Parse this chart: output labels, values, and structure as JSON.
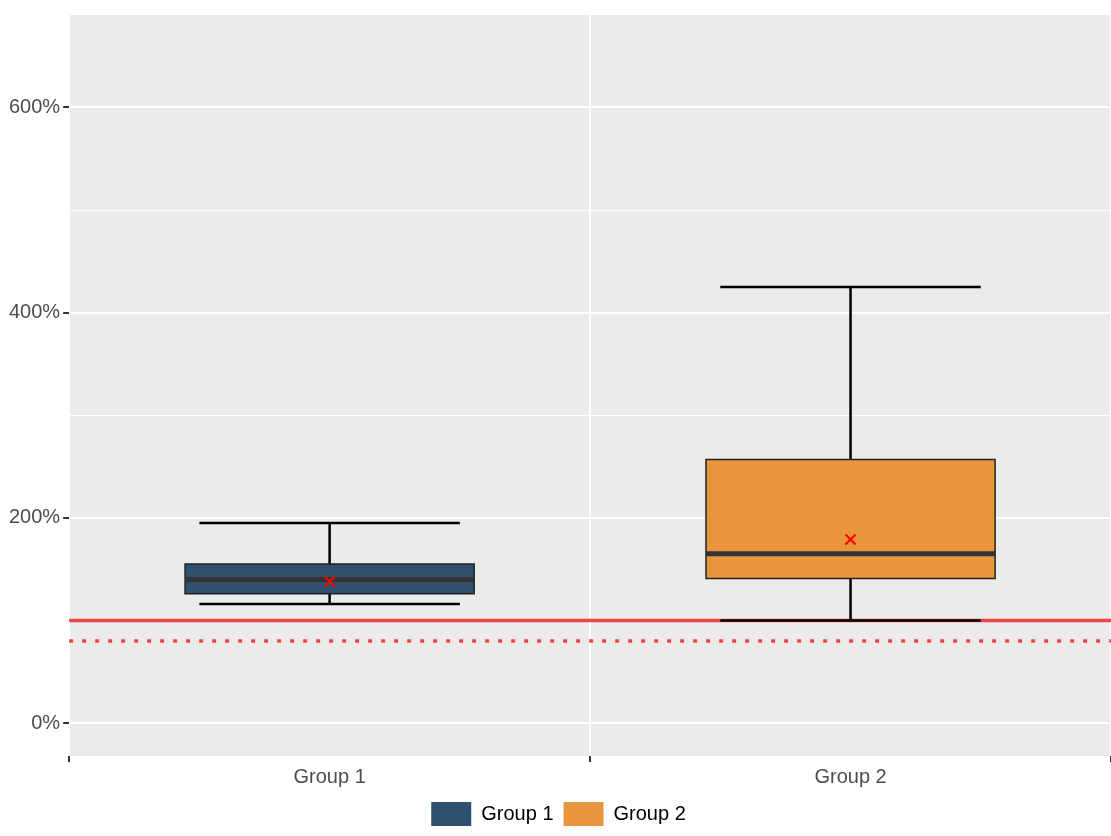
{
  "chart_data": {
    "type": "box",
    "categories": [
      "Group 1",
      "Group 2"
    ],
    "series": [
      {
        "name": "Group 1",
        "color": "#2f4f6e",
        "boxes": [
          {
            "low": 116,
            "q1": 126,
            "median": 140,
            "q3": 155,
            "high": 195,
            "mean": 138
          },
          null
        ]
      },
      {
        "name": "Group 2",
        "color": "#e8953e",
        "boxes": [
          null,
          {
            "low": 100,
            "q1": 141,
            "median": 165,
            "q3": 257,
            "high": 425,
            "mean": 179
          }
        ]
      }
    ],
    "ylim": [
      -32,
      690
    ],
    "yticks": [
      {
        "value": 0,
        "label": "0%"
      },
      {
        "value": 100,
        "label": null
      },
      {
        "value": 200,
        "label": "200%"
      },
      {
        "value": 300,
        "label": null
      },
      {
        "value": 400,
        "label": "400%"
      },
      {
        "value": 500,
        "label": null
      },
      {
        "value": 600,
        "label": "600%"
      }
    ],
    "ref_lines": [
      {
        "axis": "y",
        "value": 100,
        "color": "#f04545",
        "line_style": "solid"
      },
      {
        "axis": "y",
        "value": 80,
        "color": "#f04545",
        "line_style": "dotted"
      }
    ],
    "grid": true,
    "legend": "bottom",
    "marker": "cross"
  }
}
